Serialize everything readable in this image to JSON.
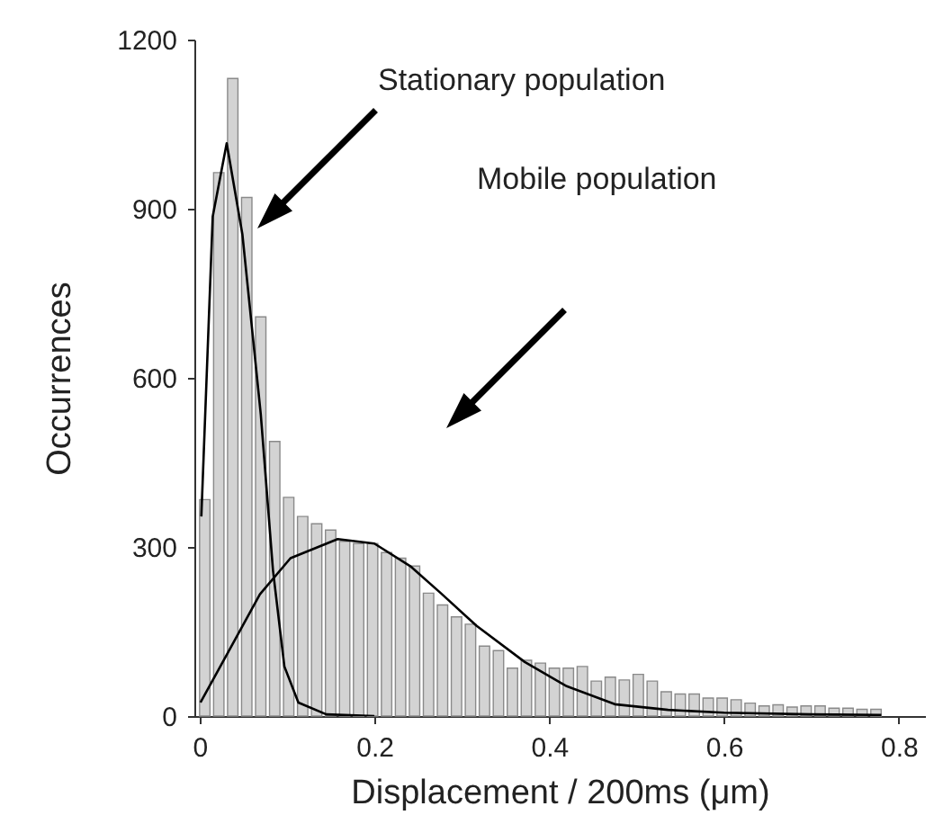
{
  "chart_data": {
    "type": "histogram",
    "xlabel": "Displacement / 200ms (μm)",
    "ylabel": "Occurrences",
    "xlim": [
      -0.006,
      0.83
    ],
    "ylim": [
      0,
      1200
    ],
    "xticks": [
      0,
      0.2,
      0.4,
      0.6,
      0.8
    ],
    "yticks": [
      0,
      300,
      600,
      900,
      1200
    ],
    "bins": [
      0,
      0.016,
      0.032,
      0.048,
      0.064,
      0.08,
      0.096,
      0.112,
      0.128,
      0.144,
      0.16,
      0.176,
      0.192,
      0.208,
      0.224,
      0.24,
      0.256,
      0.272,
      0.288,
      0.304,
      0.32,
      0.336,
      0.352,
      0.368,
      0.384,
      0.4,
      0.416,
      0.432,
      0.448,
      0.464,
      0.48,
      0.496,
      0.512,
      0.528,
      0.544,
      0.56,
      0.576,
      0.592,
      0.608,
      0.624,
      0.64,
      0.656,
      0.672,
      0.688,
      0.704,
      0.72,
      0.736,
      0.752,
      0.768,
      0.784
    ],
    "series": [
      {
        "color": "#d3d3d3",
        "values": [
          384,
          964,
          1131,
          920,
          708,
          487,
          388,
          354,
          341,
          330,
          310,
          306,
          306,
          290,
          280,
          266,
          218,
          197,
          176,
          163,
          124,
          116,
          85,
          99,
          94,
          85,
          85,
          88,
          62,
          69,
          64,
          74,
          62,
          43,
          39,
          39,
          32,
          32,
          29,
          23,
          18,
          20,
          16,
          18,
          18,
          14,
          14,
          12,
          12
        ]
      },
      {
        "type": "line",
        "color": "#000000",
        "x": [
          0.002,
          0.015,
          0.031,
          0.049,
          0.07,
          0.084,
          0.097,
          0.113,
          0.145,
          0.2
        ],
        "values": [
          354,
          886,
          1016,
          854,
          535,
          258,
          88,
          24,
          3,
          0
        ]
      },
      {
        "type": "line",
        "color": "#000000",
        "x": [
          0.001,
          0.035,
          0.069,
          0.104,
          0.158,
          0.2,
          0.241,
          0.276,
          0.317,
          0.372,
          0.42,
          0.475,
          0.536,
          0.6,
          0.7,
          0.78
        ],
        "values": [
          24,
          120,
          216,
          280,
          314,
          306,
          266,
          218,
          160,
          96,
          53,
          21,
          11,
          6,
          3,
          2
        ]
      }
    ],
    "annotations": [
      "Stationary population",
      "Mobile population"
    ]
  }
}
